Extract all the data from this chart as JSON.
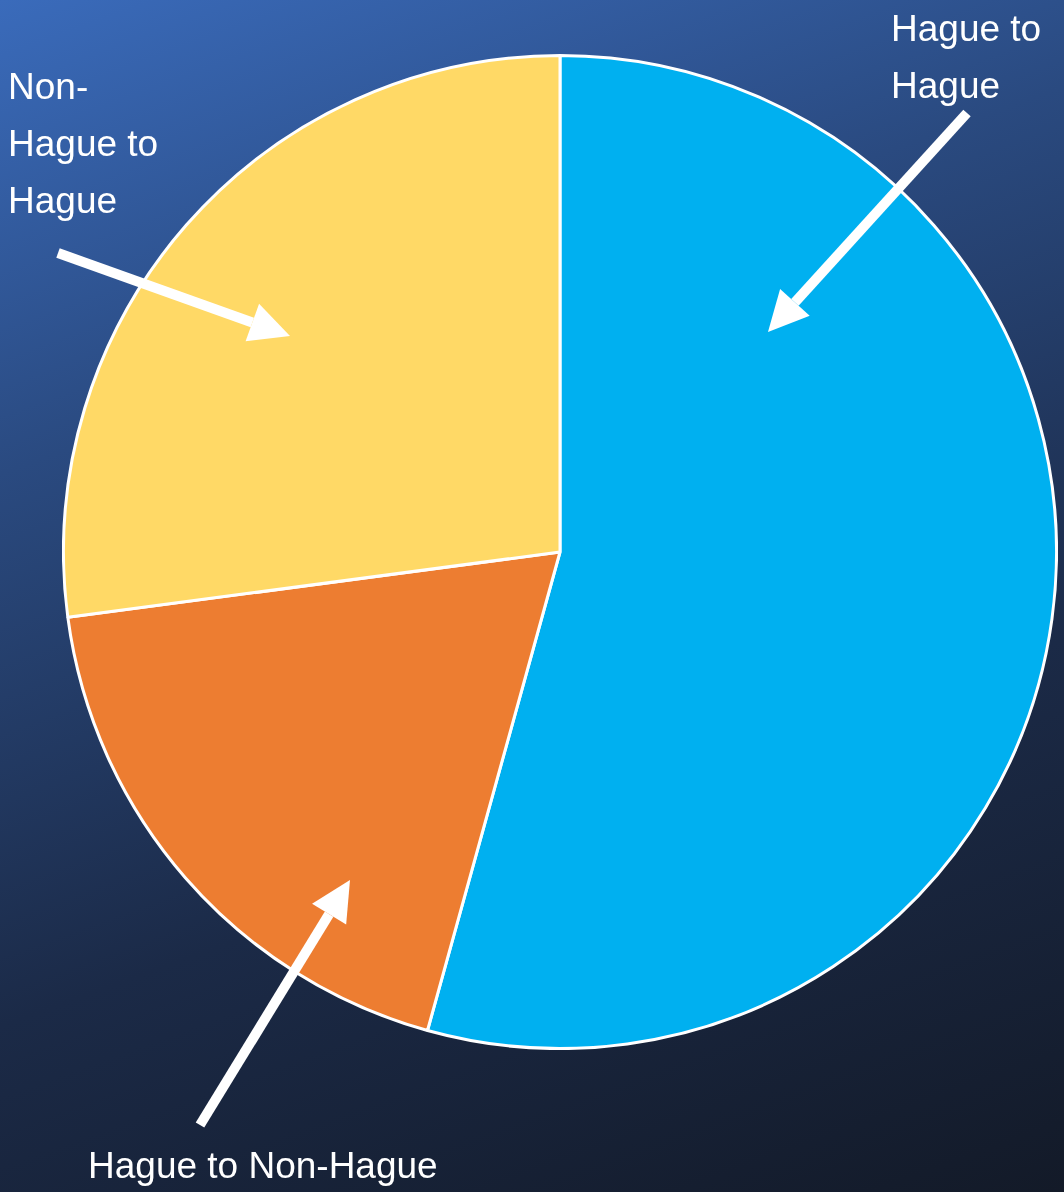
{
  "chart_data": {
    "type": "pie",
    "categories": [
      "Hague to Hague",
      "Hague to Non-Hague",
      "Non-Hague to Hague"
    ],
    "values": [
      54.3,
      18.6,
      27.1
    ],
    "colors": [
      "#00b0f0",
      "#ed7d31",
      "#ffd966"
    ]
  }
}
